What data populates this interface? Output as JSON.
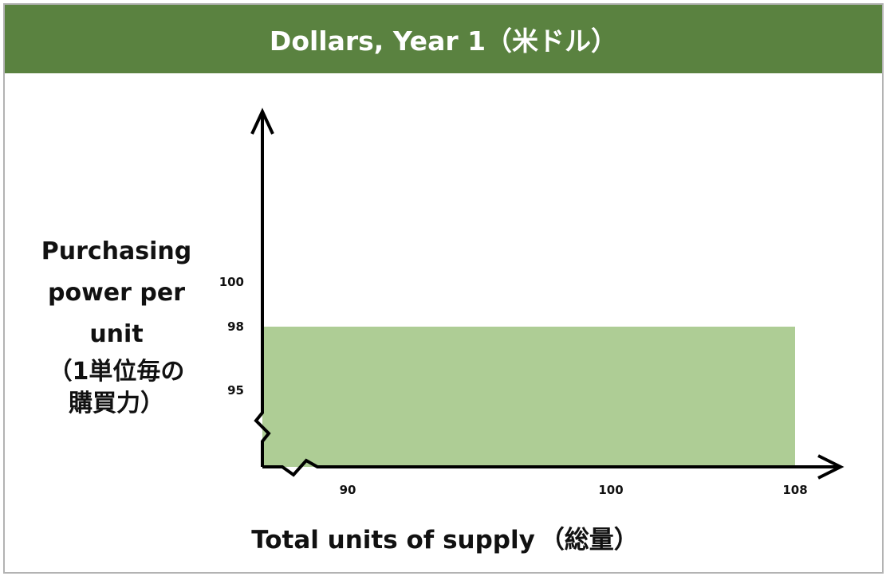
{
  "title": "Dollars, Year 1（米ドル）",
  "colors": {
    "header": "#5a8240",
    "area": "#aecd95",
    "axis": "#000000"
  },
  "chart_data": {
    "type": "area",
    "title": "Dollars, Year 1（米ドル）",
    "ylabel_lines": [
      "Purchasing",
      "power per",
      "unit"
    ],
    "ylabel_jp_lines": [
      "（1単位毎の",
      "購買力）"
    ],
    "xlabel": "Total units of supply",
    "xlabel_jp": "（総量）",
    "x_ticks": [
      90,
      100,
      108
    ],
    "y_ticks": [
      95,
      98,
      100
    ],
    "axis_breaks": [
      "x",
      "y"
    ],
    "series": [
      {
        "x": [
          86,
          108
        ],
        "y": [
          98,
          98
        ]
      }
    ],
    "xlim": [
      86,
      108
    ],
    "ylim": [
      92,
      100
    ],
    "grid": false
  }
}
